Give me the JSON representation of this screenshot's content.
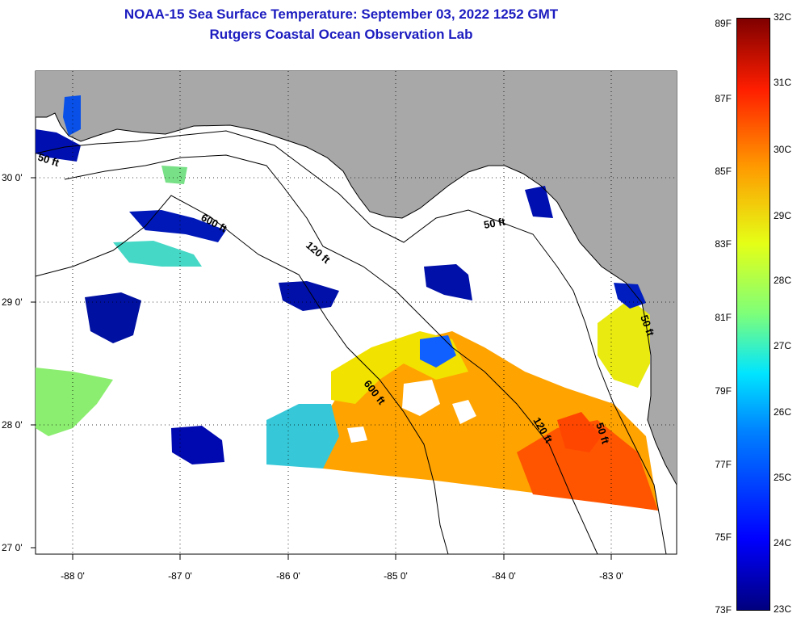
{
  "header": {
    "title": "NOAA-15 Sea Surface Temperature:  September 03, 2022 1252 GMT",
    "subtitle": "Rutgers Coastal Ocean Observation Lab"
  },
  "map": {
    "lat_ticks": [
      "30 0'",
      "29 0'",
      "28 0'",
      "27 0'"
    ],
    "lon_ticks": [
      "-88 0'",
      "-87 0'",
      "-86 0'",
      "-85 0'",
      "-84 0'",
      "-83 0'"
    ],
    "isobath_labels": [
      "50 ft",
      "600 ft",
      "120 ft",
      "50 ft",
      "600 ft",
      "120 ft",
      "50 ft",
      "50 ft"
    ],
    "colors": {
      "land": "#a8a8a8",
      "cloud": "#ffffff",
      "frame": "#000000",
      "title": "#1c1cc0"
    }
  },
  "colorbar": {
    "fahrenheit": [
      "89F",
      "87F",
      "85F",
      "83F",
      "81F",
      "79F",
      "77F",
      "75F",
      "73F"
    ],
    "celsius": [
      "32C",
      "31C",
      "30C",
      "29C",
      "28C",
      "27C",
      "26C",
      "25C",
      "24C",
      "23C"
    ]
  }
}
